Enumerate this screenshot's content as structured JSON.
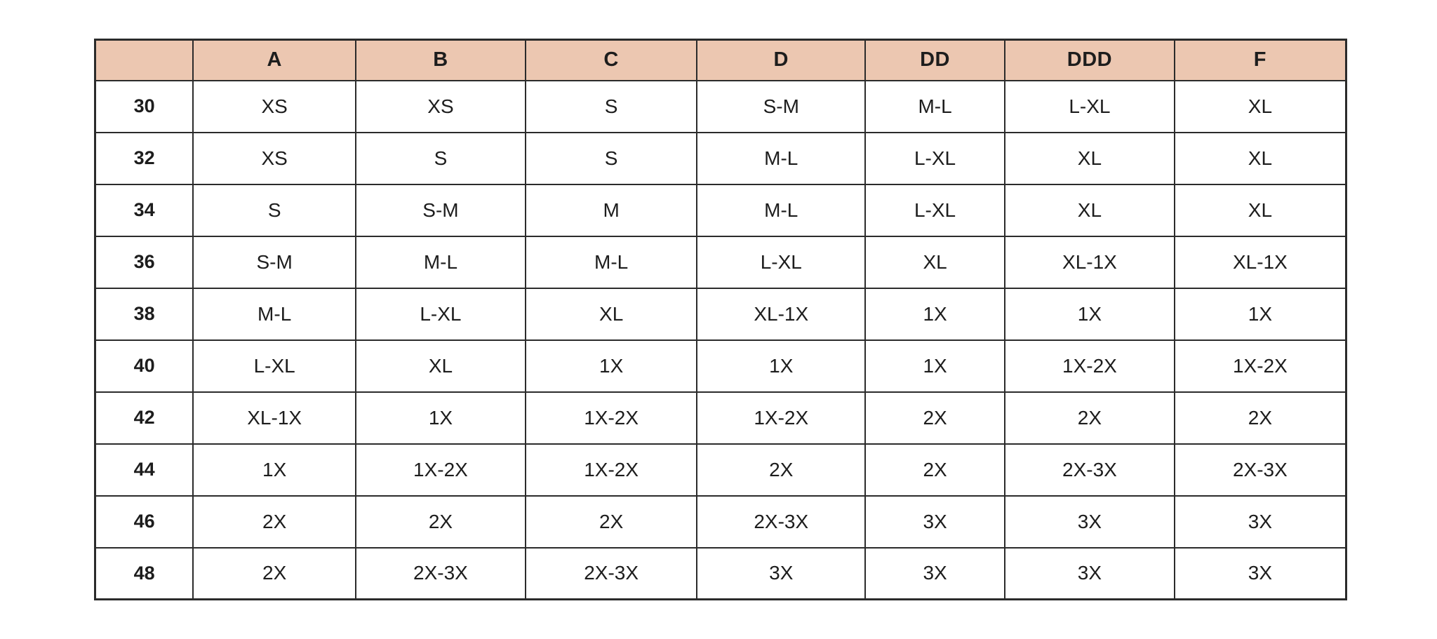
{
  "chart_data": {
    "type": "table",
    "columns": [
      "",
      "A",
      "B",
      "C",
      "D",
      "DD",
      "DDD",
      "F"
    ],
    "rows": [
      {
        "label": "30",
        "cells": [
          "XS",
          "XS",
          "S",
          "S-M",
          "M-L",
          "L-XL",
          "XL"
        ]
      },
      {
        "label": "32",
        "cells": [
          "XS",
          "S",
          "S",
          "M-L",
          "L-XL",
          "XL",
          "XL"
        ]
      },
      {
        "label": "34",
        "cells": [
          "S",
          "S-M",
          "M",
          "M-L",
          "L-XL",
          "XL",
          "XL"
        ]
      },
      {
        "label": "36",
        "cells": [
          "S-M",
          "M-L",
          "M-L",
          "L-XL",
          "XL",
          "XL-1X",
          "XL-1X"
        ]
      },
      {
        "label": "38",
        "cells": [
          "M-L",
          "L-XL",
          "XL",
          "XL-1X",
          "1X",
          "1X",
          "1X"
        ]
      },
      {
        "label": "40",
        "cells": [
          "L-XL",
          "XL",
          "1X",
          "1X",
          "1X",
          "1X-2X",
          "1X-2X"
        ]
      },
      {
        "label": "42",
        "cells": [
          "XL-1X",
          "1X",
          "1X-2X",
          "1X-2X",
          "2X",
          "2X",
          "2X"
        ]
      },
      {
        "label": "44",
        "cells": [
          "1X",
          "1X-2X",
          "1X-2X",
          "2X",
          "2X",
          "2X-3X",
          "2X-3X"
        ]
      },
      {
        "label": "46",
        "cells": [
          "2X",
          "2X",
          "2X",
          "2X-3X",
          "3X",
          "3X",
          "3X"
        ]
      },
      {
        "label": "48",
        "cells": [
          "2X",
          "2X-3X",
          "2X-3X",
          "3X",
          "3X",
          "3X",
          "3X"
        ]
      }
    ],
    "colors": {
      "header_bg": "#ECC7B1",
      "border": "#2B2B2B",
      "text": "#1D1D1D",
      "page_bg": "#FFFFFF"
    },
    "layout": {
      "grid": "on",
      "header_row_position": "top",
      "row_label_column_position": "left"
    }
  }
}
